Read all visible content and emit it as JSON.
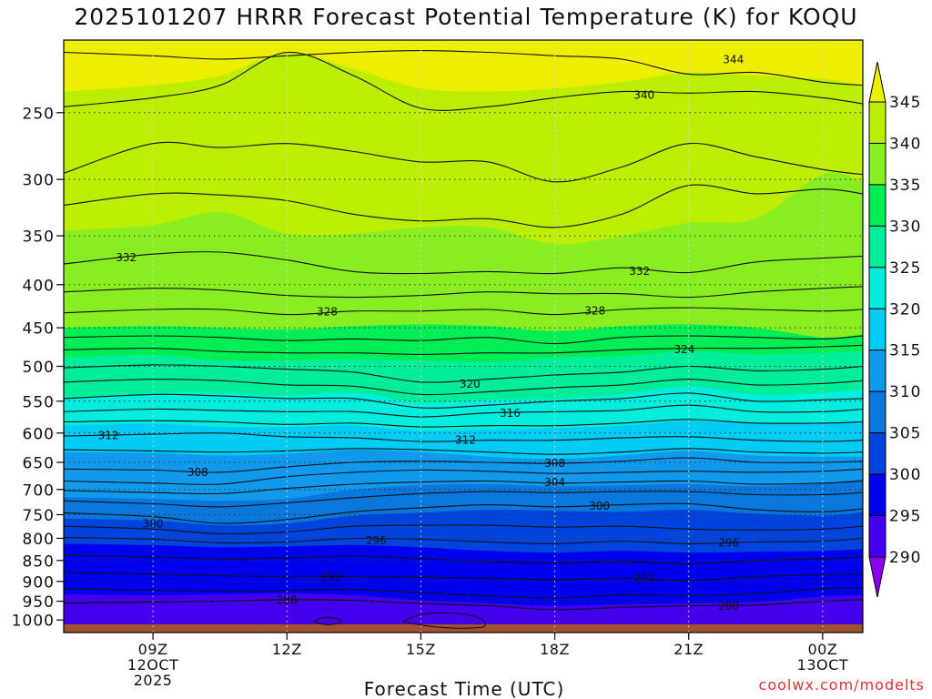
{
  "title": "2025101207 HRRR Forecast Potential Temperature (K) for KOQU",
  "credit": "coolwx.com/modelts",
  "chart_data": {
    "type": "heatmap",
    "title": "2025101207 HRRR Forecast Potential Temperature (K) for KOQU",
    "xlabel": "Forecast Time (UTC)",
    "ylabel": "",
    "x_range_hours": [
      7,
      24.9
    ],
    "y_range_hpa": [
      1035,
      205
    ],
    "y_ticks": [
      250,
      300,
      350,
      400,
      450,
      500,
      550,
      600,
      650,
      700,
      750,
      800,
      850,
      900,
      950,
      1000
    ],
    "x_ticks": [
      {
        "hour": 9,
        "lines": [
          "09Z",
          "12OCT",
          "2025"
        ]
      },
      {
        "hour": 12,
        "lines": [
          "12Z"
        ]
      },
      {
        "hour": 15,
        "lines": [
          "15Z"
        ]
      },
      {
        "hour": 18,
        "lines": [
          "18Z"
        ]
      },
      {
        "hour": 21,
        "lines": [
          "21Z"
        ]
      },
      {
        "hour": 24,
        "lines": [
          "00Z",
          "13OCT"
        ]
      }
    ],
    "colorbar": {
      "labels": [
        "345",
        "340",
        "335",
        "330",
        "325",
        "320",
        "315",
        "310",
        "305",
        "300",
        "295",
        "290"
      ],
      "levels": [
        290,
        295,
        300,
        305,
        310,
        315,
        320,
        325,
        330,
        335,
        340,
        345
      ],
      "colors": [
        "#8800ee",
        "#4400ee",
        "#0000ee",
        "#0044dd",
        "#0a77dd",
        "#1199ee",
        "#00ccf4",
        "#00eedd",
        "#00ee99",
        "#00ee55",
        "#88ee22",
        "#bbee00",
        "#eeee00"
      ]
    },
    "terrain_color": "#a0522d",
    "surface_pressure_hpa": 1012,
    "profile_times": [
      7,
      9,
      10.5,
      12,
      13.5,
      15,
      16.5,
      18,
      19.5,
      21,
      22.5,
      24,
      24.9
    ],
    "fill_boundaries": [
      {
        "level": 340,
        "p": [
          236,
          232,
          226,
          212,
          222,
          234,
          236,
          234,
          230,
          224,
          226,
          228,
          232
        ]
      },
      {
        "level": 335,
        "p": [
          345,
          340,
          328,
          348,
          348,
          342,
          342,
          358,
          350,
          338,
          334,
          296,
          302
        ]
      },
      {
        "level": 330,
        "p": [
          450,
          448,
          450,
          452,
          448,
          446,
          448,
          454,
          448,
          446,
          450,
          462,
          458
        ]
      },
      {
        "level": 325,
        "p": [
          488,
          485,
          492,
          492,
          490,
          492,
          494,
          488,
          486,
          480,
          484,
          482,
          480
        ]
      },
      {
        "level": 320,
        "p": [
          545,
          538,
          538,
          542,
          538,
          552,
          548,
          546,
          540,
          528,
          540,
          538,
          532
        ]
      },
      {
        "level": 315,
        "p": [
          588,
          585,
          590,
          590,
          588,
          596,
          594,
          592,
          588,
          580,
          584,
          584,
          580
        ]
      },
      {
        "level": 310,
        "p": [
          632,
          634,
          638,
          635,
          628,
          632,
          640,
          644,
          638,
          630,
          638,
          640,
          640
        ]
      },
      {
        "level": 305,
        "p": [
          715,
          718,
          722,
          718,
          700,
          692,
          690,
          694,
          692,
          690,
          694,
          688,
          680
        ]
      },
      {
        "level": 300,
        "p": [
          758,
          762,
          772,
          768,
          752,
          746,
          740,
          742,
          744,
          740,
          748,
          752,
          745
        ]
      },
      {
        "level": 295,
        "p": [
          812,
          815,
          820,
          818,
          815,
          820,
          828,
          832,
          828,
          832,
          830,
          828,
          824
        ]
      },
      {
        "level": 290,
        "p": [
          932,
          935,
          932,
          930,
          934,
          948,
          955,
          962,
          958,
          955,
          952,
          938,
          935
        ]
      }
    ],
    "contours": [
      {
        "level": 344,
        "p": [
          212,
          214,
          216,
          214,
          212,
          211,
          212,
          214,
          216,
          225,
          224,
          230,
          232
        ]
      },
      {
        "level": 340,
        "p": [
          246,
          240,
          232,
          212,
          226,
          247,
          246,
          240,
          236,
          237,
          236,
          240,
          244
        ]
      },
      {
        "level": 336,
        "p": [
          295,
          272,
          275,
          272,
          278,
          286,
          286,
          302,
          290,
          272,
          282,
          292,
          296
        ]
      },
      {
        "level": 334,
        "p": [
          322,
          312,
          313,
          318,
          330,
          336,
          334,
          342,
          330,
          305,
          312,
          308,
          312
        ]
      },
      {
        "level": 332,
        "p": [
          378,
          368,
          366,
          374,
          386,
          388,
          386,
          388,
          382,
          387,
          376,
          372,
          370
        ]
      },
      {
        "level": 330,
        "p": [
          408,
          404,
          406,
          412,
          414,
          412,
          408,
          410,
          410,
          414,
          408,
          404,
          402
        ]
      },
      {
        "level": 328,
        "p": [
          432,
          428,
          428,
          434,
          430,
          430,
          428,
          434,
          428,
          426,
          428,
          430,
          428
        ]
      },
      {
        "level": 326,
        "p": [
          462,
          460,
          462,
          466,
          464,
          466,
          462,
          470,
          462,
          460,
          462,
          464,
          460
        ]
      },
      {
        "level": 324,
        "p": [
          478,
          476,
          480,
          482,
          482,
          484,
          482,
          482,
          478,
          476,
          476,
          474,
          472
        ]
      },
      {
        "level": 322,
        "p": [
          502,
          498,
          500,
          504,
          508,
          522,
          518,
          512,
          508,
          500,
          506,
          504,
          500
        ]
      },
      {
        "level": 320,
        "p": [
          522,
          518,
          520,
          526,
          528,
          540,
          536,
          530,
          526,
          518,
          526,
          524,
          520
        ]
      },
      {
        "level": 318,
        "p": [
          546,
          540,
          542,
          546,
          546,
          560,
          556,
          550,
          546,
          538,
          550,
          548,
          546
        ]
      },
      {
        "level": 316,
        "p": [
          566,
          562,
          564,
          566,
          566,
          574,
          568,
          566,
          564,
          556,
          566,
          566,
          562
        ]
      },
      {
        "level": 314,
        "p": [
          582,
          580,
          582,
          586,
          584,
          590,
          588,
          588,
          584,
          578,
          584,
          584,
          582
        ]
      },
      {
        "level": 312,
        "p": [
          605,
          602,
          600,
          606,
          608,
          614,
          612,
          612,
          608,
          606,
          612,
          614,
          612
        ]
      },
      {
        "level": 310,
        "p": [
          628,
          630,
          632,
          630,
          626,
          628,
          632,
          636,
          632,
          626,
          632,
          634,
          632
        ]
      },
      {
        "level": 308,
        "p": [
          662,
          664,
          668,
          658,
          650,
          648,
          650,
          652,
          648,
          642,
          650,
          650,
          648
        ]
      },
      {
        "level": 306,
        "p": [
          684,
          688,
          690,
          676,
          668,
          664,
          666,
          670,
          668,
          666,
          668,
          666,
          662
        ]
      },
      {
        "level": 304,
        "p": [
          702,
          706,
          708,
          698,
          690,
          686,
          684,
          688,
          686,
          684,
          690,
          688,
          684
        ]
      },
      {
        "level": 302,
        "p": [
          722,
          728,
          734,
          726,
          716,
          708,
          704,
          706,
          704,
          704,
          710,
          710,
          706
        ]
      },
      {
        "level": 300,
        "p": [
          746,
          754,
          768,
          760,
          744,
          736,
          730,
          734,
          730,
          728,
          740,
          744,
          738
        ]
      },
      {
        "level": 298,
        "p": [
          774,
          780,
          790,
          786,
          774,
          772,
          772,
          776,
          774,
          780,
          782,
          780,
          774
        ]
      },
      {
        "level": 296,
        "p": [
          798,
          802,
          810,
          808,
          800,
          802,
          808,
          812,
          806,
          812,
          808,
          806,
          800
        ]
      },
      {
        "level": 294,
        "p": [
          838,
          842,
          846,
          844,
          840,
          846,
          852,
          856,
          852,
          858,
          850,
          846,
          842
        ]
      },
      {
        "level": 292,
        "p": [
          878,
          882,
          886,
          888,
          888,
          890,
          892,
          896,
          892,
          898,
          888,
          884,
          882
        ]
      },
      {
        "level": 290,
        "p": [
          918,
          922,
          924,
          922,
          920,
          928,
          936,
          942,
          934,
          936,
          930,
          918,
          916
        ]
      },
      {
        "level": 288,
        "p": [
          955,
          952,
          950,
          946,
          948,
          956,
          962,
          972,
          966,
          962,
          960,
          950,
          946
        ]
      }
    ],
    "contour_labels": [
      {
        "text": "344",
        "t": 22,
        "p": 216
      },
      {
        "text": "340",
        "t": 20,
        "p": 238
      },
      {
        "text": "332",
        "t": 8.4,
        "p": 371
      },
      {
        "text": "332",
        "t": 19.9,
        "p": 385
      },
      {
        "text": "328",
        "t": 12.9,
        "p": 430
      },
      {
        "text": "328",
        "t": 18.9,
        "p": 429
      },
      {
        "text": "324",
        "t": 20.9,
        "p": 477
      },
      {
        "text": "320",
        "t": 16.1,
        "p": 524
      },
      {
        "text": "316",
        "t": 17.0,
        "p": 568
      },
      {
        "text": "312",
        "t": 8.0,
        "p": 603
      },
      {
        "text": "312",
        "t": 16.0,
        "p": 611
      },
      {
        "text": "308",
        "t": 18.0,
        "p": 651
      },
      {
        "text": "308",
        "t": 10.0,
        "p": 667
      },
      {
        "text": "304",
        "t": 18.0,
        "p": 686
      },
      {
        "text": "300",
        "t": 19.0,
        "p": 732
      },
      {
        "text": "300",
        "t": 9.0,
        "p": 768
      },
      {
        "text": "296",
        "t": 14.0,
        "p": 804
      },
      {
        "text": "296",
        "t": 21.9,
        "p": 809
      },
      {
        "text": "292",
        "t": 13.0,
        "p": 888
      },
      {
        "text": "292",
        "t": 20.0,
        "p": 892
      },
      {
        "text": "288",
        "t": 12.0,
        "p": 946
      },
      {
        "text": "288",
        "t": 21.9,
        "p": 962
      }
    ]
  }
}
